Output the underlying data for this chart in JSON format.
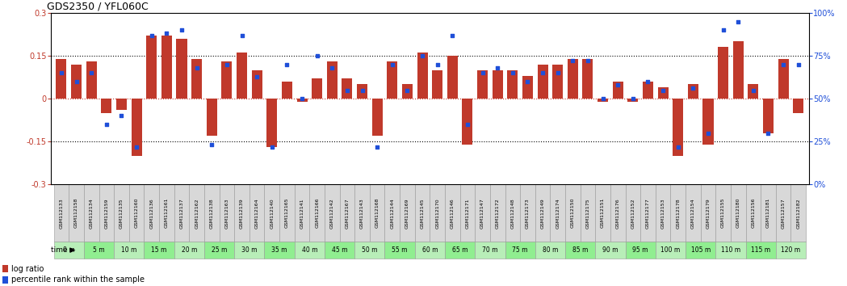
{
  "title": "GDS2350 / YFL060C",
  "samples": [
    "GSM112133",
    "GSM112158",
    "GSM112134",
    "GSM112159",
    "GSM112135",
    "GSM112160",
    "GSM112136",
    "GSM112161",
    "GSM112137",
    "GSM112162",
    "GSM112138",
    "GSM112163",
    "GSM112139",
    "GSM112164",
    "GSM112140",
    "GSM112165",
    "GSM112141",
    "GSM112166",
    "GSM112142",
    "GSM112167",
    "GSM112143",
    "GSM112168",
    "GSM112144",
    "GSM112169",
    "GSM112145",
    "GSM112170",
    "GSM112146",
    "GSM112171",
    "GSM112147",
    "GSM112172",
    "GSM112148",
    "GSM112173",
    "GSM112149",
    "GSM112174",
    "GSM112150",
    "GSM112175",
    "GSM112151",
    "GSM112176",
    "GSM112152",
    "GSM112177",
    "GSM112153",
    "GSM112178",
    "GSM112154",
    "GSM112179",
    "GSM112155",
    "GSM112180",
    "GSM112156",
    "GSM112181",
    "GSM112157",
    "GSM112182"
  ],
  "log_ratio": [
    0.14,
    0.12,
    0.13,
    -0.05,
    -0.04,
    -0.2,
    0.22,
    0.22,
    0.21,
    0.14,
    -0.13,
    0.13,
    0.16,
    0.1,
    -0.17,
    0.06,
    -0.01,
    0.07,
    0.13,
    0.07,
    0.05,
    -0.13,
    0.13,
    0.05,
    0.16,
    0.1,
    0.15,
    -0.16,
    0.1,
    0.1,
    0.1,
    0.08,
    0.12,
    0.12,
    0.14,
    0.14,
    -0.01,
    0.06,
    -0.01,
    0.06,
    0.04,
    -0.2,
    0.05,
    -0.16,
    0.18,
    0.2,
    0.05,
    -0.12,
    0.14,
    -0.05
  ],
  "percentile": [
    65,
    60,
    65,
    35,
    40,
    22,
    87,
    88,
    90,
    68,
    23,
    70,
    87,
    63,
    22,
    70,
    50,
    75,
    68,
    55,
    55,
    22,
    70,
    55,
    75,
    70,
    87,
    35,
    65,
    68,
    65,
    60,
    65,
    65,
    72,
    72,
    50,
    58,
    50,
    60,
    55,
    22,
    56,
    30,
    90,
    95,
    55,
    30,
    70,
    70
  ],
  "time_labels": [
    "0 m",
    "5 m",
    "10 m",
    "15 m",
    "20 m",
    "25 m",
    "30 m",
    "35 m",
    "40 m",
    "45 m",
    "50 m",
    "55 m",
    "60 m",
    "65 m",
    "70 m",
    "75 m",
    "80 m",
    "85 m",
    "90 m",
    "95 m",
    "100 m",
    "105 m",
    "110 m",
    "115 m",
    "120 m"
  ],
  "bar_color": "#C0392B",
  "dot_color": "#1F4FD8",
  "bg_color": "#FFFFFF",
  "ylim_left": [
    -0.3,
    0.3
  ],
  "ylim_right": [
    0,
    100
  ],
  "green_light": "#90EE90",
  "green_dark": "#4CBB4C",
  "grey_cell": "#D8D8D8"
}
